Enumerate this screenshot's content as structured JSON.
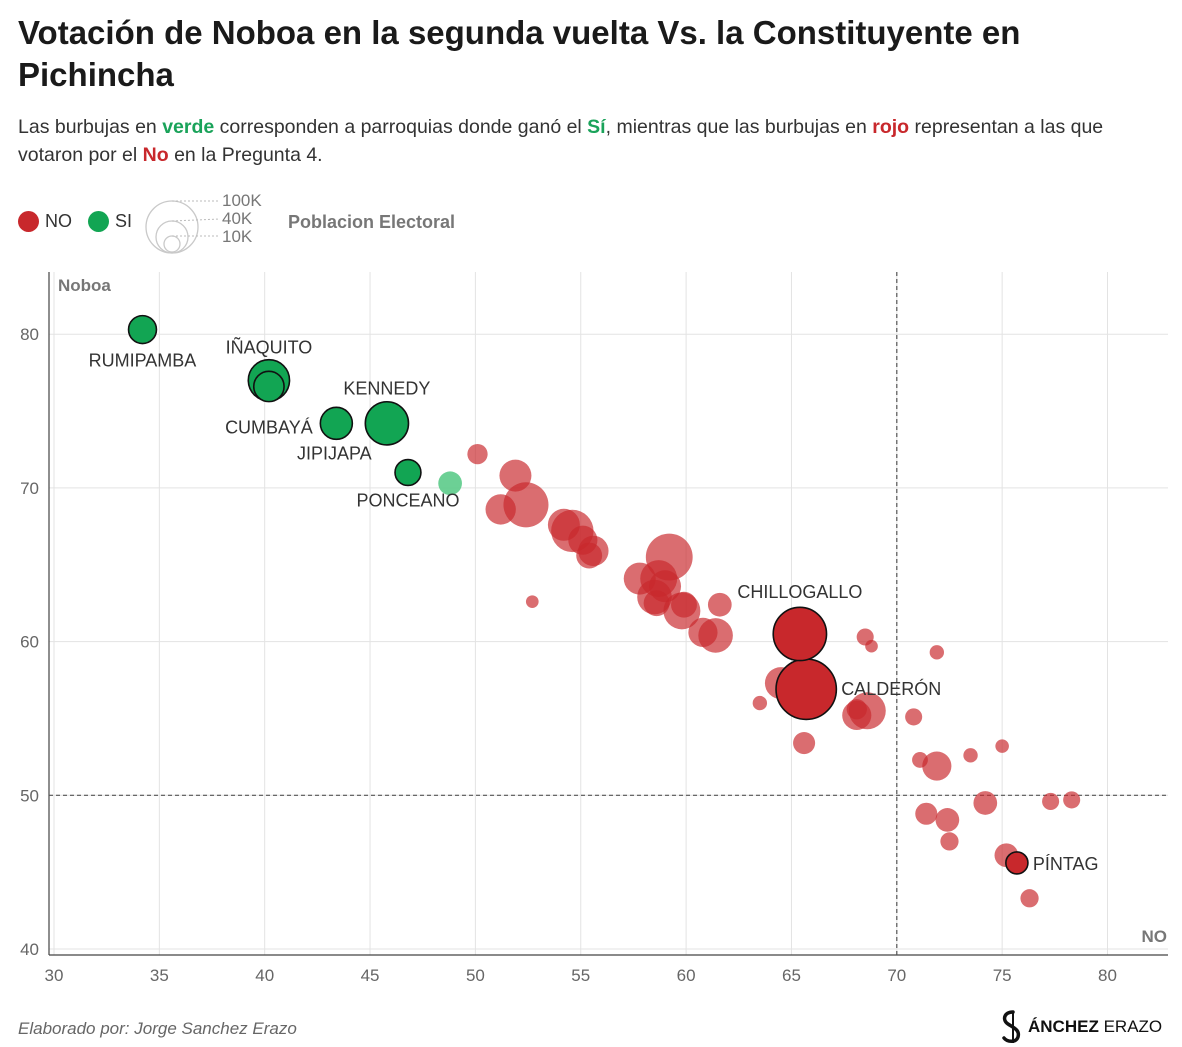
{
  "header": {
    "title": "Votación de Noboa en la segunda vuelta Vs. la Constituyente en Pichincha",
    "subtitle_parts": [
      "Las burbujas en ",
      "verde",
      " corresponden a parroquias donde ganó el ",
      "Sí",
      ", mientras que las burbujas en ",
      "rojo",
      " representan a las que votaron por el ",
      "No",
      " en la Pregunta 4."
    ]
  },
  "legend": {
    "no_label": "NO",
    "si_label": "SI",
    "size_labels": [
      "100K",
      "40K",
      "10K"
    ],
    "size_title": "Poblacion Electoral"
  },
  "colors": {
    "no": "#c8282c",
    "si": "#12a553",
    "si_light": "#5ccb8a",
    "grid": "#e3e3e3",
    "axis": "#444444",
    "ref_line": "#555555"
  },
  "chart_data": {
    "type": "scatter",
    "xlabel": "NO",
    "ylabel": "Noboa",
    "xlim": [
      30,
      83
    ],
    "ylim": [
      40,
      84
    ],
    "x_ticks": [
      30,
      35,
      40,
      45,
      50,
      55,
      60,
      65,
      70,
      75,
      80
    ],
    "y_ticks": [
      40,
      50,
      60,
      70,
      80
    ],
    "grid": true,
    "reference_lines": {
      "x": 70,
      "y": 50
    },
    "size_meaning": "Poblacion Electoral",
    "labeled_points": [
      {
        "label": "RUMIPAMBA",
        "x": 34.2,
        "y": 80.3,
        "group": "SI",
        "pop": 18000
      },
      {
        "label": "IÑAQUITO",
        "x": 40.2,
        "y": 77.0,
        "group": "SI",
        "pop": 45000
      },
      {
        "label": "CUMBAYÁ",
        "x": 40.2,
        "y": 76.6,
        "group": "SI",
        "pop": 22000
      },
      {
        "label": "JIPIJAPA",
        "x": 43.4,
        "y": 74.2,
        "group": "SI",
        "pop": 25000
      },
      {
        "label": "KENNEDY",
        "x": 45.8,
        "y": 74.2,
        "group": "SI",
        "pop": 50000
      },
      {
        "label": "PONCEANO",
        "x": 46.8,
        "y": 71.0,
        "group": "SI",
        "pop": 15000
      },
      {
        "label": "CHILLOGALLO",
        "x": 65.4,
        "y": 60.5,
        "group": "NO",
        "pop": 80000
      },
      {
        "label": "CALDERÓN",
        "x": 65.7,
        "y": 56.9,
        "group": "NO",
        "pop": 105000
      },
      {
        "label": "PÍNTAG",
        "x": 75.7,
        "y": 45.6,
        "group": "NO",
        "pop": 10000
      }
    ],
    "points": [
      {
        "x": 48.8,
        "y": 70.3,
        "group": "SI",
        "pop": 12000
      },
      {
        "x": 50.1,
        "y": 72.2,
        "group": "NO",
        "pop": 8000
      },
      {
        "x": 51.9,
        "y": 70.8,
        "group": "NO",
        "pop": 25000
      },
      {
        "x": 52.4,
        "y": 68.9,
        "group": "NO",
        "pop": 55000
      },
      {
        "x": 51.2,
        "y": 68.6,
        "group": "NO",
        "pop": 22000
      },
      {
        "x": 52.7,
        "y": 62.6,
        "group": "NO",
        "pop": 2000
      },
      {
        "x": 54.2,
        "y": 67.6,
        "group": "NO",
        "pop": 25000
      },
      {
        "x": 54.6,
        "y": 67.2,
        "group": "NO",
        "pop": 48000
      },
      {
        "x": 55.1,
        "y": 66.6,
        "group": "NO",
        "pop": 20000
      },
      {
        "x": 55.6,
        "y": 65.9,
        "group": "NO",
        "pop": 22000
      },
      {
        "x": 55.4,
        "y": 65.6,
        "group": "NO",
        "pop": 15000
      },
      {
        "x": 59.2,
        "y": 65.5,
        "group": "NO",
        "pop": 60000
      },
      {
        "x": 57.8,
        "y": 64.1,
        "group": "NO",
        "pop": 25000
      },
      {
        "x": 58.7,
        "y": 64.1,
        "group": "NO",
        "pop": 35000
      },
      {
        "x": 59.0,
        "y": 63.6,
        "group": "NO",
        "pop": 25000
      },
      {
        "x": 58.5,
        "y": 62.9,
        "group": "NO",
        "pop": 30000
      },
      {
        "x": 58.6,
        "y": 62.5,
        "group": "NO",
        "pop": 15000
      },
      {
        "x": 59.9,
        "y": 62.4,
        "group": "NO",
        "pop": 15000
      },
      {
        "x": 59.8,
        "y": 62.0,
        "group": "NO",
        "pop": 35000
      },
      {
        "x": 61.6,
        "y": 62.4,
        "group": "NO",
        "pop": 12000
      },
      {
        "x": 60.8,
        "y": 60.6,
        "group": "NO",
        "pop": 20000
      },
      {
        "x": 61.4,
        "y": 60.4,
        "group": "NO",
        "pop": 30000
      },
      {
        "x": 63.5,
        "y": 56.0,
        "group": "NO",
        "pop": 3000
      },
      {
        "x": 64.5,
        "y": 57.3,
        "group": "NO",
        "pop": 25000
      },
      {
        "x": 65.6,
        "y": 53.4,
        "group": "NO",
        "pop": 10000
      },
      {
        "x": 68.5,
        "y": 60.3,
        "group": "NO",
        "pop": 5000
      },
      {
        "x": 68.8,
        "y": 59.7,
        "group": "NO",
        "pop": 2000
      },
      {
        "x": 68.1,
        "y": 55.6,
        "group": "NO",
        "pop": 8000
      },
      {
        "x": 68.6,
        "y": 55.5,
        "group": "NO",
        "pop": 35000
      },
      {
        "x": 68.1,
        "y": 55.2,
        "group": "NO",
        "pop": 20000
      },
      {
        "x": 71.9,
        "y": 59.3,
        "group": "NO",
        "pop": 3000
      },
      {
        "x": 70.8,
        "y": 55.1,
        "group": "NO",
        "pop": 5000
      },
      {
        "x": 71.1,
        "y": 52.3,
        "group": "NO",
        "pop": 4000
      },
      {
        "x": 71.9,
        "y": 51.9,
        "group": "NO",
        "pop": 20000
      },
      {
        "x": 73.5,
        "y": 52.6,
        "group": "NO",
        "pop": 3000
      },
      {
        "x": 75.0,
        "y": 53.2,
        "group": "NO",
        "pop": 2500
      },
      {
        "x": 74.2,
        "y": 49.5,
        "group": "NO",
        "pop": 12000
      },
      {
        "x": 71.4,
        "y": 48.8,
        "group": "NO",
        "pop": 10000
      },
      {
        "x": 72.4,
        "y": 48.4,
        "group": "NO",
        "pop": 12000
      },
      {
        "x": 72.5,
        "y": 47.0,
        "group": "NO",
        "pop": 6000
      },
      {
        "x": 77.3,
        "y": 49.6,
        "group": "NO",
        "pop": 5000
      },
      {
        "x": 78.3,
        "y": 49.7,
        "group": "NO",
        "pop": 5000
      },
      {
        "x": 75.2,
        "y": 46.1,
        "group": "NO",
        "pop": 12000
      },
      {
        "x": 76.3,
        "y": 43.3,
        "group": "NO",
        "pop": 6000
      }
    ]
  },
  "footer": {
    "credit": "Elaborado por: Jorge Sanchez Erazo",
    "brand_initial": "S",
    "brand_bold": "ÁNCHEZ",
    "brand_rest": "ERAZO"
  }
}
